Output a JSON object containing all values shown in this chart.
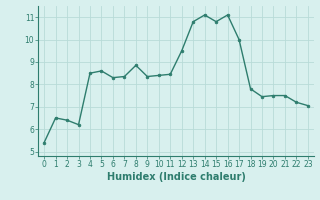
{
  "x": [
    0,
    1,
    2,
    3,
    4,
    5,
    6,
    7,
    8,
    9,
    10,
    11,
    12,
    13,
    14,
    15,
    16,
    17,
    18,
    19,
    20,
    21,
    22,
    23
  ],
  "y": [
    5.4,
    6.5,
    6.4,
    6.2,
    8.5,
    8.6,
    8.3,
    8.35,
    8.85,
    8.35,
    8.4,
    8.45,
    9.5,
    10.8,
    11.1,
    10.8,
    11.1,
    10.0,
    7.8,
    7.45,
    7.5,
    7.5,
    7.2,
    7.05
  ],
  "line_color": "#2e7d6e",
  "marker": "o",
  "marker_size": 2,
  "line_width": 1.0,
  "bg_color": "#d8f0ee",
  "grid_color": "#b8dbd8",
  "xlabel": "Humidex (Indice chaleur)",
  "ylim": [
    4.8,
    11.5
  ],
  "xlim": [
    -0.5,
    23.5
  ],
  "yticks": [
    5,
    6,
    7,
    8,
    9,
    10,
    11
  ],
  "xticks": [
    0,
    1,
    2,
    3,
    4,
    5,
    6,
    7,
    8,
    9,
    10,
    11,
    12,
    13,
    14,
    15,
    16,
    17,
    18,
    19,
    20,
    21,
    22,
    23
  ],
  "tick_label_fontsize": 5.5,
  "xlabel_fontsize": 7.0
}
